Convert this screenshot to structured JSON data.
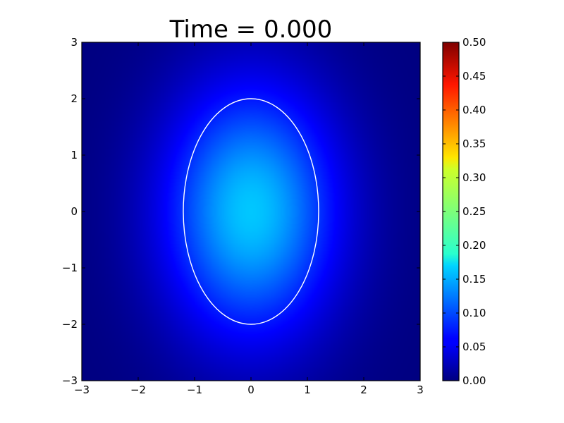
{
  "chart_data": {
    "type": "heatmap",
    "title": "Time = 0.000",
    "xlabel": "",
    "ylabel": "",
    "xlim": [
      -3,
      3
    ],
    "ylim": [
      -3,
      3
    ],
    "x_ticks": [
      "−3",
      "−2",
      "−1",
      "0",
      "1",
      "2",
      "3"
    ],
    "x_tick_values": [
      -3,
      -2,
      -1,
      0,
      1,
      2,
      3
    ],
    "y_ticks": [
      "3",
      "2",
      "1",
      "0",
      "−1",
      "−2",
      "−3"
    ],
    "y_tick_values": [
      3,
      2,
      1,
      0,
      -1,
      -2,
      -3
    ],
    "field": {
      "shape": "gaussian",
      "center": [
        0,
        0
      ],
      "peak_value": 0.16,
      "sigma_x": 1.1,
      "sigma_y": 1.6
    },
    "colormap": "jet",
    "colorbar": {
      "vmin": 0.0,
      "vmax": 0.5,
      "tick_values": [
        0.5,
        0.45,
        0.4,
        0.35,
        0.3,
        0.25,
        0.2,
        0.15,
        0.1,
        0.05,
        0.0
      ],
      "tick_labels": [
        "0.50",
        "0.45",
        "0.40",
        "0.35",
        "0.30",
        "0.25",
        "0.20",
        "0.15",
        "0.10",
        "0.05",
        "0.00"
      ]
    },
    "contour": {
      "type": "ellipse",
      "center": [
        0,
        0
      ],
      "semi_axis_x": 1.2,
      "semi_axis_y": 2.0,
      "color": "#ffffff"
    }
  }
}
